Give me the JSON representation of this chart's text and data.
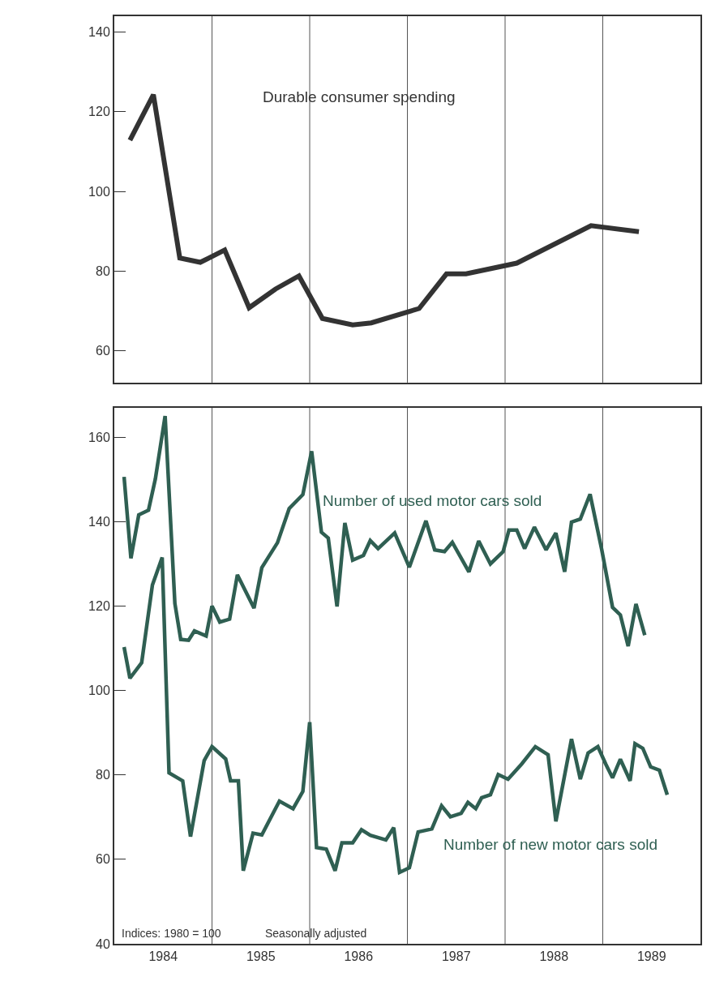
{
  "chart_data": [
    {
      "type": "line",
      "xlim": [
        1984,
        1990
      ],
      "ylim": [
        52,
        144
      ],
      "yticks": [
        60,
        80,
        100,
        120,
        140
      ],
      "tick_labels": "y",
      "ref_lines": [
        {
          "axis": "x",
          "value": 1985
        },
        {
          "axis": "x",
          "value": 1986
        },
        {
          "axis": "x",
          "value": 1987
        },
        {
          "axis": "x",
          "value": 1988
        },
        {
          "axis": "x",
          "value": 1989
        }
      ],
      "series": [
        {
          "name": "Durable consumer spending",
          "color": "#333333",
          "x": [
            1984.16,
            1984.4,
            1984.67,
            1984.88,
            1985.13,
            1985.38,
            1985.65,
            1985.89,
            1986.13,
            1986.44,
            1986.63,
            1987.12,
            1987.4,
            1987.6,
            1988.12,
            1988.88,
            1989.37
          ],
          "values": [
            112.9,
            124.3,
            83.3,
            82.2,
            85.3,
            70.8,
            75.5,
            78.8,
            68.1,
            66.5,
            67.0,
            70.6,
            79.3,
            79.3,
            82.0,
            91.4,
            89.9
          ]
        }
      ]
    },
    {
      "type": "line",
      "xlim": [
        1984,
        1990
      ],
      "ylim": [
        40,
        167
      ],
      "yticks": [
        40,
        60,
        80,
        100,
        120,
        140,
        160
      ],
      "xticks": [
        {
          "value": 1984.5,
          "label": "1984"
        },
        {
          "value": 1985.5,
          "label": "1985"
        },
        {
          "value": 1986.5,
          "label": "1986"
        },
        {
          "value": 1987.5,
          "label": "1987"
        },
        {
          "value": 1988.5,
          "label": "1988"
        },
        {
          "value": 1989.5,
          "label": "1989"
        }
      ],
      "ref_lines": [
        {
          "axis": "x",
          "value": 1985
        },
        {
          "axis": "x",
          "value": 1986
        },
        {
          "axis": "x",
          "value": 1987
        },
        {
          "axis": "x",
          "value": 1988
        },
        {
          "axis": "x",
          "value": 1989
        }
      ],
      "annotations": [
        "Indices: 1980 = 100",
        "Seasonally adjusted"
      ],
      "series": [
        {
          "name": "Number of used motor cars sold",
          "color": "#2f5f52",
          "x": [
            1984.1,
            1984.17,
            1984.25,
            1984.35,
            1984.42,
            1984.52,
            1984.62,
            1984.68,
            1984.76,
            1984.82,
            1984.94,
            1985.0,
            1985.08,
            1985.18,
            1985.26,
            1985.43,
            1985.51,
            1985.67,
            1985.79,
            1985.93,
            1986.02,
            1986.12,
            1986.19,
            1986.28,
            1986.36,
            1986.44,
            1986.55,
            1986.62,
            1986.7,
            1986.87,
            1987.02,
            1987.19,
            1987.28,
            1987.38,
            1987.46,
            1987.63,
            1987.73,
            1987.85,
            1987.98,
            1988.04,
            1988.12,
            1988.2,
            1988.3,
            1988.42,
            1988.52,
            1988.61,
            1988.68,
            1988.77,
            1988.87,
            1988.99,
            1989.1,
            1989.18,
            1989.26,
            1989.34,
            1989.43
          ],
          "values": [
            150.6,
            131.3,
            141.6,
            142.7,
            150.1,
            165,
            120.6,
            112.1,
            111.9,
            114.1,
            112.9,
            120.0,
            116.2,
            116.9,
            127.4,
            119.5,
            129.1,
            135.0,
            143.1,
            146.4,
            156.7,
            137.5,
            136.1,
            119.9,
            139.7,
            130.9,
            132.0,
            135.5,
            133.6,
            137.3,
            129.2,
            140.2,
            133.3,
            132.9,
            135.1,
            128.1,
            135.4,
            130.0,
            132.9,
            138.0,
            138.0,
            133.6,
            138.7,
            133.3,
            137.3,
            128.1,
            139.9,
            140.6,
            146.5,
            133.3,
            119.7,
            117.9,
            110.5,
            120.5,
            113.1
          ]
        },
        {
          "name": "Number of new motor cars sold",
          "color": "#2f5f52",
          "x": [
            1984.1,
            1984.16,
            1984.28,
            1984.39,
            1984.49,
            1984.56,
            1984.7,
            1984.78,
            1984.92,
            1985.0,
            1985.14,
            1985.19,
            1985.27,
            1985.32,
            1985.42,
            1985.51,
            1985.69,
            1985.83,
            1985.93,
            1986.0,
            1986.07,
            1986.17,
            1986.26,
            1986.33,
            1986.44,
            1986.53,
            1986.62,
            1986.78,
            1986.86,
            1986.92,
            1987.02,
            1987.11,
            1987.25,
            1987.35,
            1987.44,
            1987.55,
            1987.62,
            1987.7,
            1987.76,
            1987.85,
            1987.93,
            1988.03,
            1988.17,
            1988.31,
            1988.44,
            1988.52,
            1988.68,
            1988.77,
            1988.85,
            1988.95,
            1989.03,
            1989.1,
            1989.18,
            1989.28,
            1989.33,
            1989.41,
            1989.49,
            1989.58,
            1989.66
          ],
          "values": [
            110.3,
            102.9,
            106.6,
            125.0,
            131.5,
            80.5,
            78.6,
            65.4,
            83.4,
            86.7,
            83.8,
            78.6,
            78.6,
            57.3,
            66.2,
            65.8,
            73.8,
            72.0,
            76.1,
            92.5,
            62.8,
            62.4,
            57.3,
            63.9,
            63.9,
            67.0,
            65.7,
            64.6,
            67.5,
            56.9,
            58.0,
            66.5,
            67.2,
            72.7,
            70.1,
            70.9,
            73.5,
            72.0,
            74.6,
            75.3,
            80.1,
            79.0,
            82.6,
            86.7,
            84.8,
            69.0,
            88.5,
            79.0,
            85.2,
            86.7,
            82.6,
            79.3,
            83.7,
            78.6,
            87.4,
            86.3,
            81.9,
            81.1,
            75.3
          ]
        }
      ]
    }
  ]
}
